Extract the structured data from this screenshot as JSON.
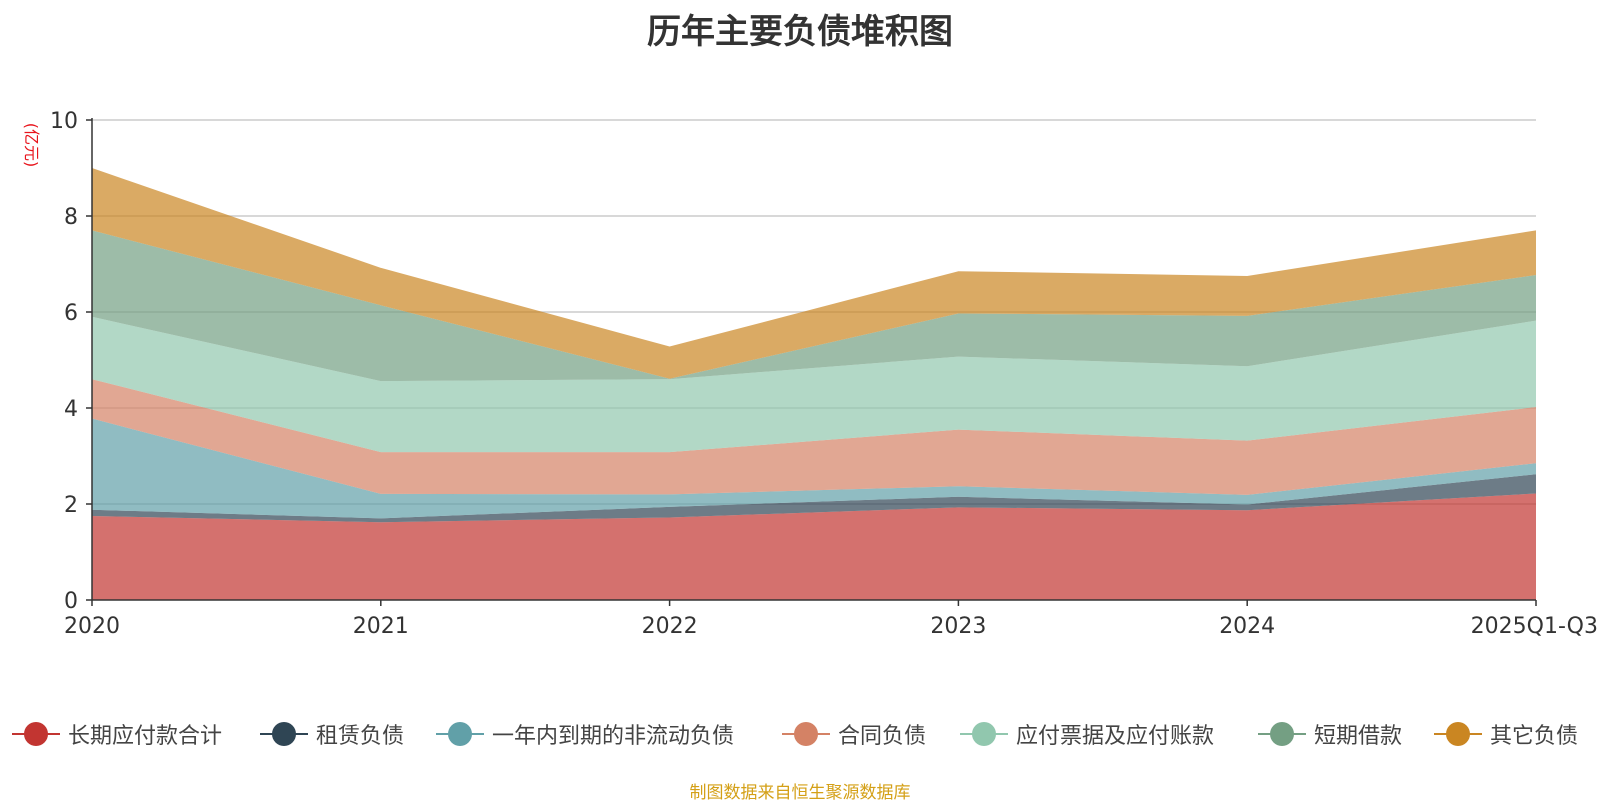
{
  "chart_data": {
    "type": "area",
    "stacked": true,
    "title": "历年主要负债堆积图",
    "ylabel": "(亿元)",
    "xlabel": "",
    "ylim": [
      0,
      10
    ],
    "yticks": [
      0,
      2,
      4,
      6,
      8,
      10
    ],
    "categories": [
      "2020",
      "2021",
      "2022",
      "2023",
      "2024",
      "2025Q1-Q3"
    ],
    "series": [
      {
        "name": "长期应付款合计",
        "color": "#c23531",
        "values": [
          1.75,
          1.62,
          1.72,
          1.93,
          1.87,
          2.22
        ]
      },
      {
        "name": "租赁负债",
        "color": "#2f4554",
        "values": [
          0.13,
          0.08,
          0.22,
          0.22,
          0.12,
          0.4
        ]
      },
      {
        "name": "一年内到期的非流动负债",
        "color": "#61a0a8",
        "values": [
          1.9,
          0.51,
          0.26,
          0.22,
          0.2,
          0.23
        ]
      },
      {
        "name": "合同负债",
        "color": "#d48265",
        "values": [
          0.82,
          0.87,
          0.88,
          1.18,
          1.13,
          1.17
        ]
      },
      {
        "name": "应付票据及应付账款",
        "color": "#91c7ae",
        "values": [
          1.3,
          1.48,
          1.52,
          1.52,
          1.55,
          1.8
        ]
      },
      {
        "name": "短期借款",
        "color": "#749f83",
        "values": [
          1.8,
          1.58,
          0.01,
          0.9,
          1.05,
          0.95
        ]
      },
      {
        "name": "其它负债",
        "color": "#ca8622",
        "values": [
          1.3,
          0.78,
          0.67,
          0.88,
          0.83,
          0.93
        ]
      }
    ]
  },
  "footer": "制图数据来自恒生聚源数据库"
}
